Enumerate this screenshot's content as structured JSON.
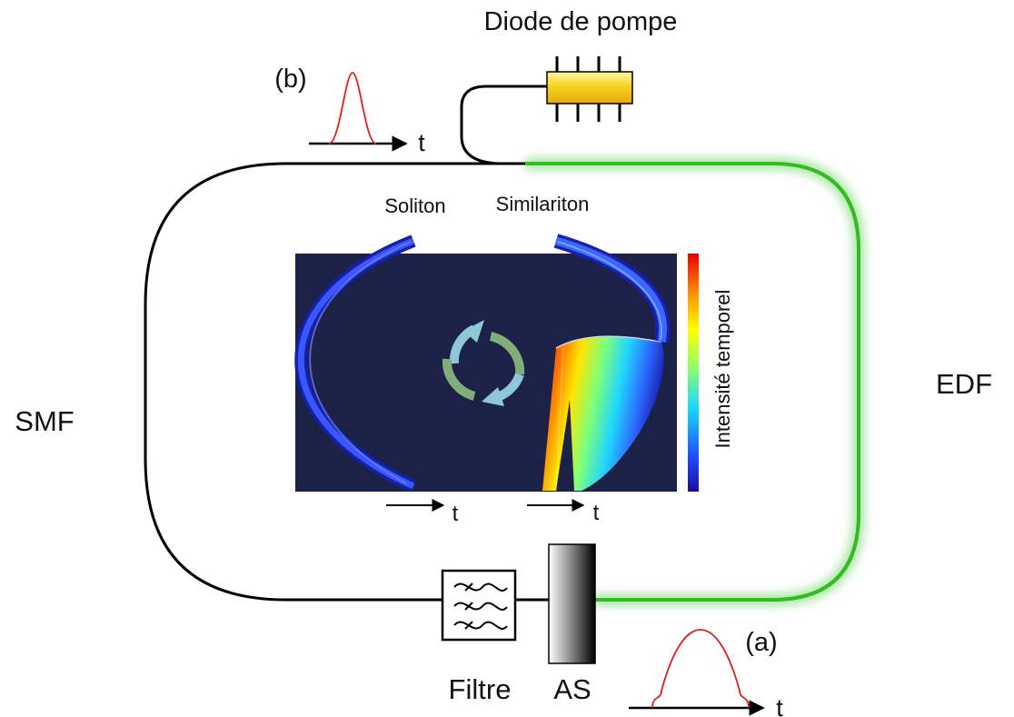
{
  "labels": {
    "pump_diode": "Diode de pompe",
    "smf": "SMF",
    "edf": "EDF",
    "filter": "Filtre",
    "saturable_absorber": "AS",
    "soliton": "Soliton",
    "similariton": "Similariton",
    "colorbar": "Intensité temporel",
    "pulse_b": "(b)",
    "pulse_a": "(a)",
    "time_axis": "t"
  },
  "colors": {
    "fiber_smf": "#000000",
    "fiber_edf": "#33bb22",
    "edf_glow": "#9fe39a",
    "pump_diode": "#f7d21f",
    "pulse": "#e0201a",
    "inset_background": "#1c2148",
    "arrow_light_blue": "#8ec7d6",
    "arrow_green": "#7fae78"
  },
  "colorbar_scale": [
    "#1a0f9e",
    "#2050ff",
    "#18d8ff",
    "#8cff6a",
    "#ffff00",
    "#ff8a00",
    "#e80000"
  ]
}
